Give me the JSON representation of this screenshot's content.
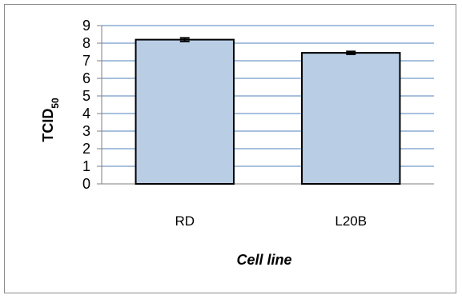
{
  "chart_data": {
    "type": "bar",
    "categories": [
      "RD",
      "L20B"
    ],
    "values": [
      8.2,
      7.45
    ],
    "error": [
      0.1,
      0.08
    ],
    "ylim": [
      0,
      9
    ],
    "yticks": [
      "0",
      "1",
      "2",
      "3",
      "4",
      "5",
      "6",
      "7",
      "8",
      "9"
    ],
    "xlabel": "Cell line",
    "ylabel_main": "TCID",
    "ylabel_sub": "50",
    "grid": true,
    "legend": "none",
    "colors": {
      "bar_fill": "#b9cde5",
      "bar_stroke": "#000000",
      "grid": "#4f81bd",
      "axis": "#7f7f7f"
    }
  }
}
